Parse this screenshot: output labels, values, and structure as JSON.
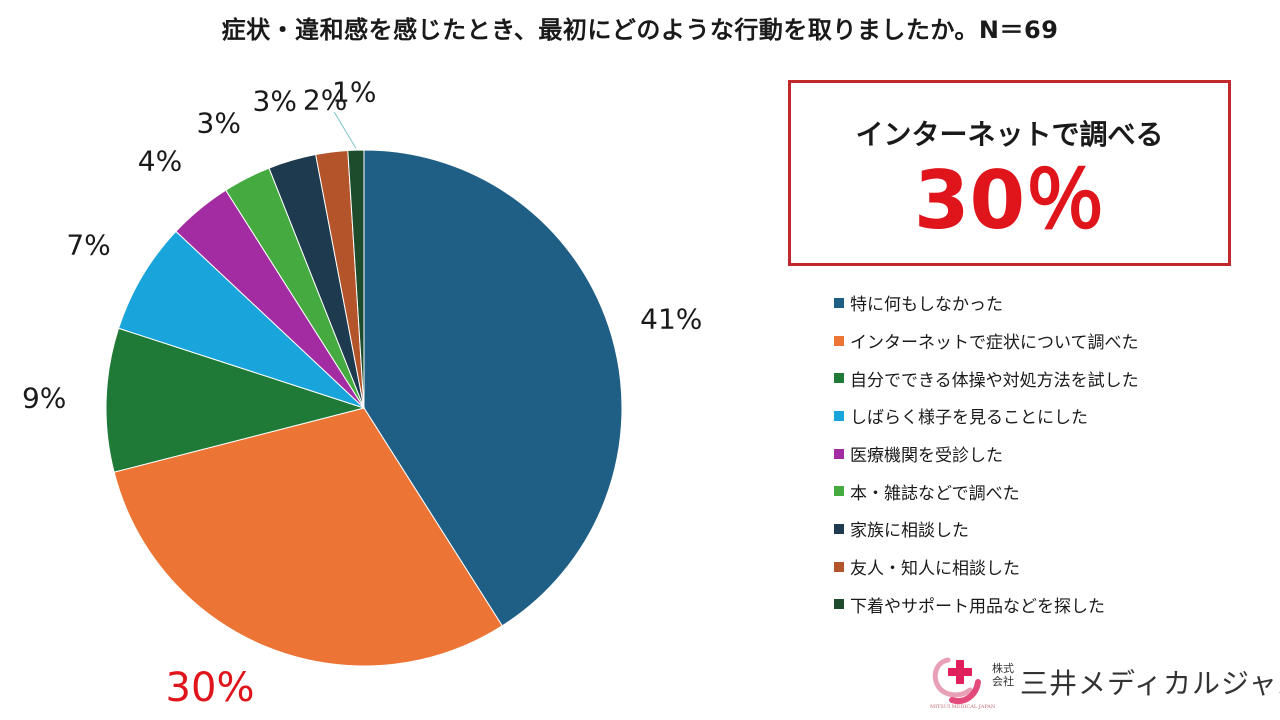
{
  "title": "症状・違和感を感じたとき、最初にどのような行動を取りましたか。N＝69",
  "callout": {
    "title": "インターネットで調べる",
    "value": "30％",
    "value_color": "#e0141b",
    "border_color": "#c0282b"
  },
  "logo": {
    "kind": "株式会社",
    "name": "三井メディカルジャパン",
    "sub": "MITSUI MEDICAL JAPAN"
  },
  "chart_data": {
    "type": "pie",
    "unit": "%",
    "start": "12 o'clock",
    "direction": "clockwise",
    "slices": [
      {
        "name": "特に何もしなかった",
        "value": 41,
        "label": "41%",
        "color": "#1f5f85",
        "highlight": false
      },
      {
        "name": "インターネットで症状について調べた",
        "value": 30,
        "label": "30%",
        "color": "#ec7434",
        "highlight": true
      },
      {
        "name": "自分でできる体操や対処方法を試した",
        "value": 9,
        "label": "9%",
        "color": "#1e7a36",
        "highlight": false
      },
      {
        "name": "しばらく様子を見ることにした",
        "value": 7,
        "label": "7%",
        "color": "#19a4dc",
        "highlight": false
      },
      {
        "name": "医療機関を受診した",
        "value": 4,
        "label": "4%",
        "color": "#a32ca2",
        "highlight": false
      },
      {
        "name": "本・雑誌などで調べた",
        "value": 3,
        "label": "3%",
        "color": "#45aa40",
        "highlight": false
      },
      {
        "name": "家族に相談した",
        "value": 3,
        "label": "3%",
        "color": "#1d3a4e",
        "highlight": false
      },
      {
        "name": "友人・知人に相談した",
        "value": 2,
        "label": "2%",
        "color": "#b4542a",
        "highlight": false
      },
      {
        "name": "下着やサポート用品などを探した",
        "value": 1,
        "label": "1%",
        "color": "#1d4c2c",
        "highlight": false
      }
    ],
    "legend_placement": "right"
  }
}
